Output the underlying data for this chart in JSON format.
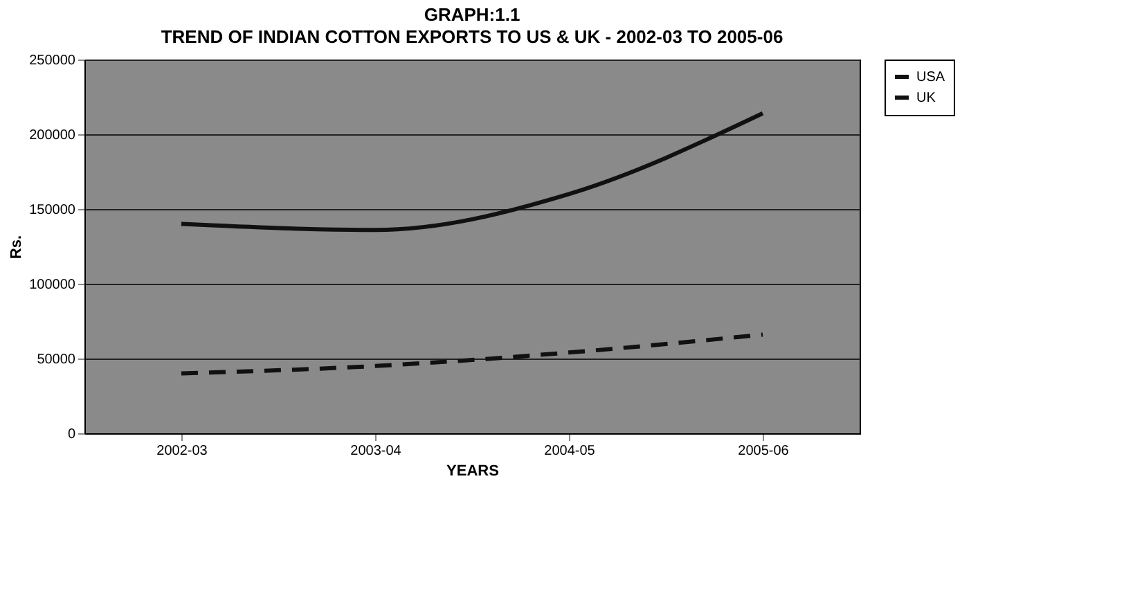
{
  "chart_data": {
    "type": "line",
    "title": "GRAPH:1.1",
    "subtitle": "TREND OF INDIAN COTTON EXPORTS TO US & UK - 2002-03 TO 2005-06",
    "xlabel": "YEARS",
    "ylabel": "Rs.",
    "categories": [
      "2002-03",
      "2003-04",
      "2004-05",
      "2005-06"
    ],
    "series": [
      {
        "name": "USA",
        "color": "#111111",
        "values": [
          140000,
          136000,
          160000,
          214000
        ],
        "line_style": "solid"
      },
      {
        "name": "UK",
        "color": "#111111",
        "values": [
          40000,
          45000,
          54000,
          66000
        ],
        "line_style": "dashed"
      }
    ],
    "ylim": [
      0,
      250000
    ],
    "yticks": [
      0,
      50000,
      100000,
      150000,
      200000,
      250000
    ],
    "grid": "y",
    "legend": "right",
    "marker": "none"
  }
}
